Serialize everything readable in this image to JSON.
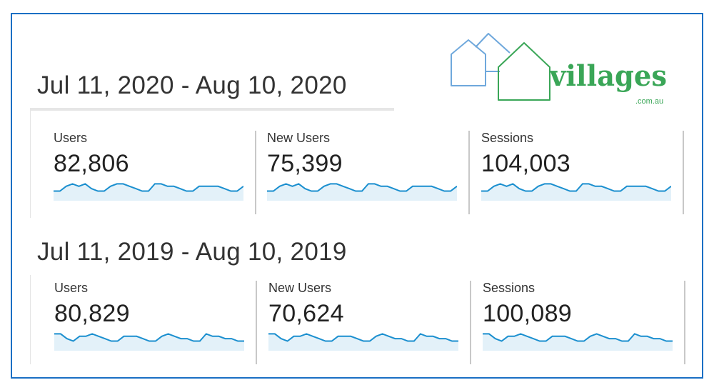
{
  "logo": {
    "text": "villages",
    "subtext": ".com.au",
    "colors": {
      "green": "#3aa657",
      "blue": "#6fa8dc"
    }
  },
  "colors": {
    "frame": "#1a6fc4",
    "sparkline": "#1b8fcf",
    "sparkline_fill": "#e3f1f9"
  },
  "periods": [
    {
      "title": "Jul 11, 2020 - Aug 10, 2020",
      "metrics": [
        {
          "label": "Users",
          "value": "82,806",
          "trend": [
            4,
            4,
            6,
            7,
            6,
            7,
            5,
            4,
            4,
            6,
            7,
            7,
            6,
            5,
            4,
            4,
            7,
            7,
            6,
            6,
            5,
            4,
            4,
            6,
            6,
            6,
            6,
            5,
            4,
            4,
            6
          ]
        },
        {
          "label": "New Users",
          "value": "75,399",
          "trend": [
            4,
            4,
            6,
            7,
            6,
            7,
            5,
            4,
            4,
            6,
            7,
            7,
            6,
            5,
            4,
            4,
            7,
            7,
            6,
            6,
            5,
            4,
            4,
            6,
            6,
            6,
            6,
            5,
            4,
            4,
            6
          ]
        },
        {
          "label": "Sessions",
          "value": "104,003",
          "trend": [
            4,
            4,
            6,
            7,
            6,
            7,
            5,
            4,
            4,
            6,
            7,
            7,
            6,
            5,
            4,
            4,
            7,
            7,
            6,
            6,
            5,
            4,
            4,
            6,
            6,
            6,
            6,
            5,
            4,
            4,
            6
          ]
        }
      ]
    },
    {
      "title": "Jul 11, 2019 - Aug 10, 2019",
      "metrics": [
        {
          "label": "Users",
          "value": "80,829",
          "trend": [
            7,
            7,
            5,
            4,
            6,
            6,
            7,
            6,
            5,
            4,
            4,
            6,
            6,
            6,
            5,
            4,
            4,
            6,
            7,
            6,
            5,
            5,
            4,
            4,
            7,
            6,
            6,
            5,
            5,
            4,
            4
          ]
        },
        {
          "label": "New Users",
          "value": "70,624",
          "trend": [
            7,
            7,
            5,
            4,
            6,
            6,
            7,
            6,
            5,
            4,
            4,
            6,
            6,
            6,
            5,
            4,
            4,
            6,
            7,
            6,
            5,
            5,
            4,
            4,
            7,
            6,
            6,
            5,
            5,
            4,
            4
          ]
        },
        {
          "label": "Sessions",
          "value": "100,089",
          "trend": [
            7,
            7,
            5,
            4,
            6,
            6,
            7,
            6,
            5,
            4,
            4,
            6,
            6,
            6,
            5,
            4,
            4,
            6,
            7,
            6,
            5,
            5,
            4,
            4,
            7,
            6,
            6,
            5,
            5,
            4,
            4
          ]
        }
      ]
    }
  ]
}
